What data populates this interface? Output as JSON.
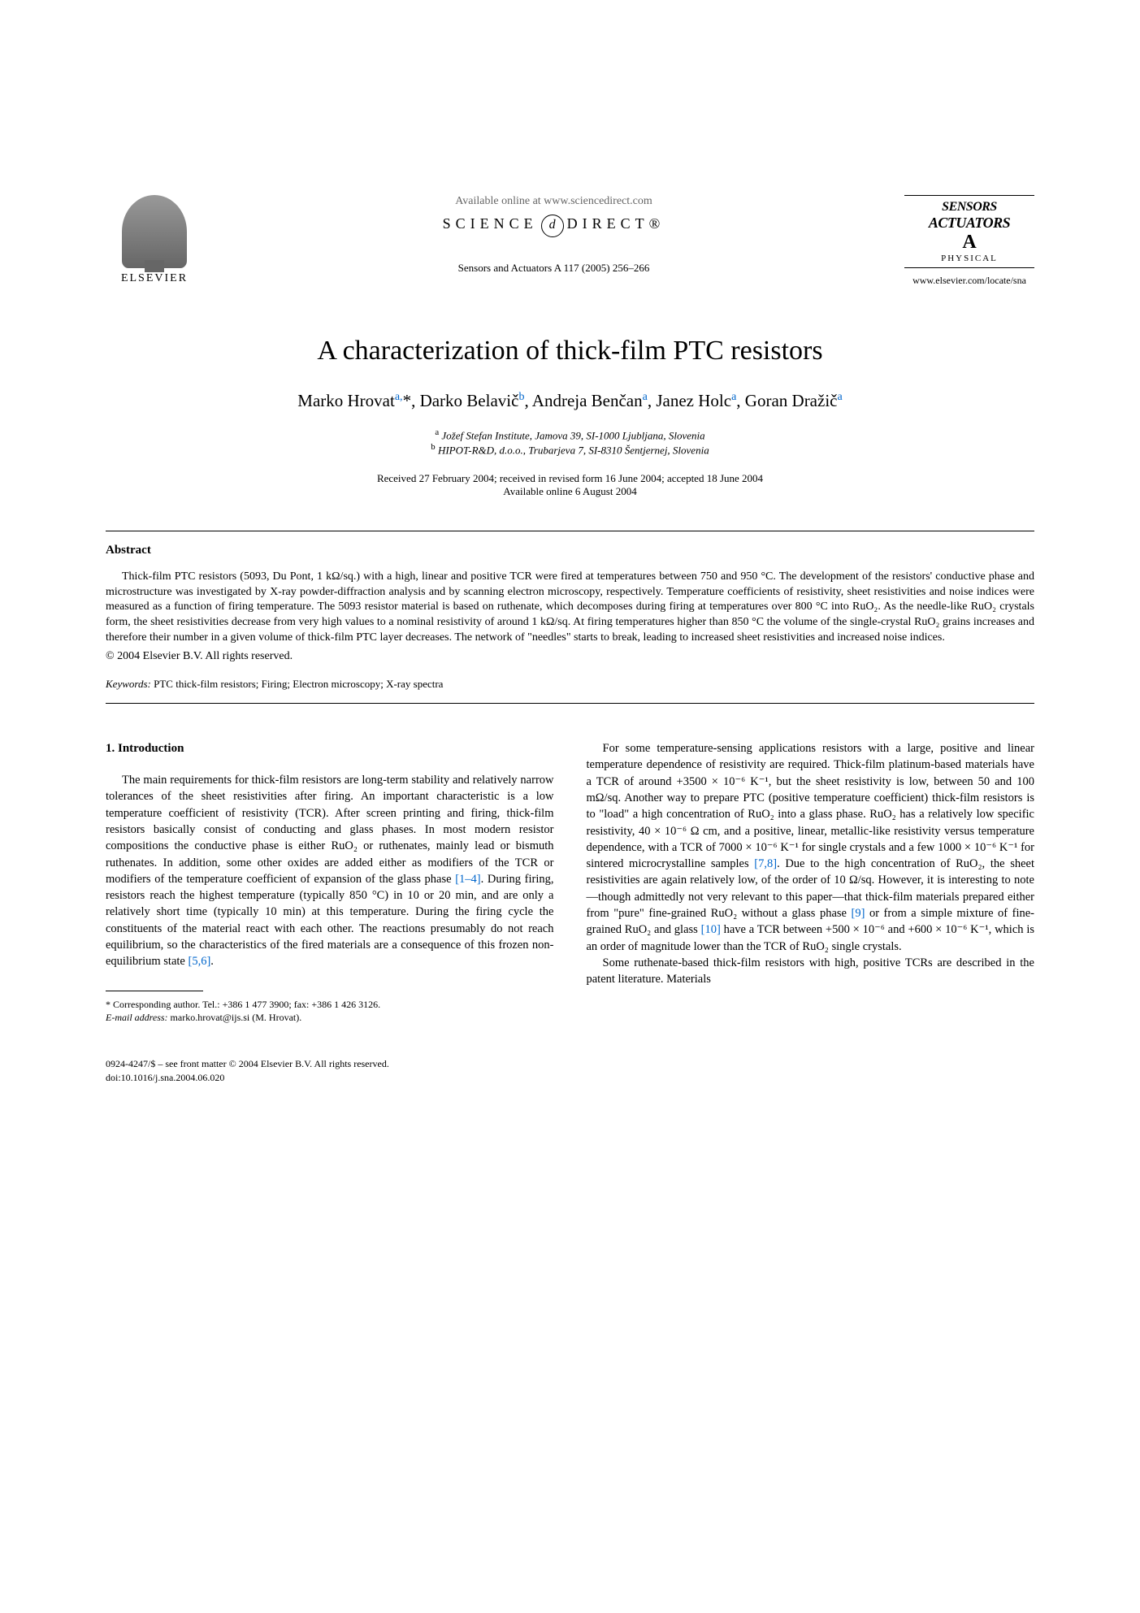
{
  "header": {
    "elsevier_label": "ELSEVIER",
    "available_online": "Available online at www.sciencedirect.com",
    "science_prefix": "SCIENCE",
    "science_d": "d",
    "direct_suffix": "DIRECT®",
    "journal_ref": "Sensors and Actuators A 117 (2005) 256–266",
    "journal_logo": {
      "sensors": "SENSORS",
      "actuators": "ACTUATORS",
      "letter": "A",
      "physical": "PHYSICAL"
    },
    "journal_url": "www.elsevier.com/locate/sna"
  },
  "title": "A characterization of thick-film PTC resistors",
  "authors_html": "Marko Hrovat<sup>a,</sup>*, Darko Belavič<sup>b</sup>, Andreja Benčan<sup>a</sup>, Janez Holc<sup>a</sup>, Goran Dražič<sup>a</sup>",
  "affiliations": {
    "a": "Jožef Stefan Institute, Jamova 39, SI-1000 Ljubljana, Slovenia",
    "b": "HIPOT-R&D, d.o.o., Trubarjeva 7, SI-8310 Šentjernej, Slovenia"
  },
  "dates": {
    "received": "Received 27 February 2004; received in revised form 16 June 2004; accepted 18 June 2004",
    "available": "Available online 6 August 2004"
  },
  "abstract": {
    "heading": "Abstract",
    "text": "Thick-film PTC resistors (5093, Du Pont, 1 kΩ/sq.) with a high, linear and positive TCR were fired at temperatures between 750 and 950 °C. The development of the resistors' conductive phase and microstructure was investigated by X-ray powder-diffraction analysis and by scanning electron microscopy, respectively. Temperature coefficients of resistivity, sheet resistivities and noise indices were measured as a function of firing temperature. The 5093 resistor material is based on ruthenate, which decomposes during firing at temperatures over 800 °C into RuO₂. As the needle-like RuO₂ crystals form, the sheet resistivities decrease from very high values to a nominal resistivity of around 1 kΩ/sq. At firing temperatures higher than 850 °C the volume of the single-crystal RuO₂ grains increases and therefore their number in a given volume of thick-film PTC layer decreases. The network of \"needles\" starts to break, leading to increased sheet resistivities and increased noise indices.",
    "copyright": "© 2004 Elsevier B.V. All rights reserved."
  },
  "keywords": {
    "label": "Keywords:",
    "text": " PTC thick-film resistors; Firing; Electron microscopy; X-ray spectra"
  },
  "body": {
    "section_heading": "1. Introduction",
    "col1_p1": "The main requirements for thick-film resistors are long-term stability and relatively narrow tolerances of the sheet resistivities after firing. An important characteristic is a low temperature coefficient of resistivity (TCR). After screen printing and firing, thick-film resistors basically consist of conducting and glass phases. In most modern resistor compositions the conductive phase is either RuO₂ or ruthenates, mainly lead or bismuth ruthenates. In addition, some other oxides are added either as modifiers of the TCR or modifiers of the temperature coefficient of expansion of the glass phase ",
    "col1_ref1": "[1–4]",
    "col1_p1b": ". During firing, resistors reach the highest temperature (typically 850 °C) in 10 or 20 min, and are only a relatively short time (typically 10 min) at this temperature. During the firing cycle the constituents of the material react with each other. The reactions presumably do not reach equilibrium, so the characteristics of the fired materials are a consequence of this frozen non-equilibrium state ",
    "col1_ref2": "[5,6]",
    "col1_p1c": ".",
    "col2_p1": "For some temperature-sensing applications resistors with a large, positive and linear temperature dependence of resistivity are required. Thick-film platinum-based materials have a TCR of around +3500 × 10⁻⁶ K⁻¹, but the sheet resistivity is low, between 50 and 100 mΩ/sq. Another way to prepare PTC (positive temperature coefficient) thick-film resistors is to \"load\" a high concentration of RuO₂ into a glass phase. RuO₂ has a relatively low specific resistivity, 40 × 10⁻⁶ Ω cm, and a positive, linear, metallic-like resistivity versus temperature dependence, with a TCR of 7000 × 10⁻⁶ K⁻¹ for single crystals and a few 1000 × 10⁻⁶ K⁻¹ for sintered microcrystalline samples ",
    "col2_ref1": "[7,8]",
    "col2_p1b": ". Due to the high concentration of RuO₂, the sheet resistivities are again relatively low, of the order of 10 Ω/sq. However, it is interesting to note—though admittedly not very relevant to this paper—that thick-film materials prepared either from \"pure\" fine-grained RuO₂ without a glass phase ",
    "col2_ref2": "[9]",
    "col2_p1c": " or from a simple mixture of fine-grained RuO₂ and glass ",
    "col2_ref3": "[10]",
    "col2_p1d": " have a TCR between +500 × 10⁻⁶ and +600 × 10⁻⁶ K⁻¹, which is an order of magnitude lower than the TCR of RuO₂ single crystals.",
    "col2_p2": "Some ruthenate-based thick-film resistors with high, positive TCRs are described in the patent literature. Materials"
  },
  "footnote": {
    "corresponding": "* Corresponding author. Tel.: +386 1 477 3900; fax: +386 1 426 3126.",
    "email_label": "E-mail address:",
    "email": " marko.hrovat@ijs.si (M. Hrovat)."
  },
  "footer": {
    "issn": "0924-4247/$ – see front matter © 2004 Elsevier B.V. All rights reserved.",
    "doi": "doi:10.1016/j.sna.2004.06.020"
  }
}
